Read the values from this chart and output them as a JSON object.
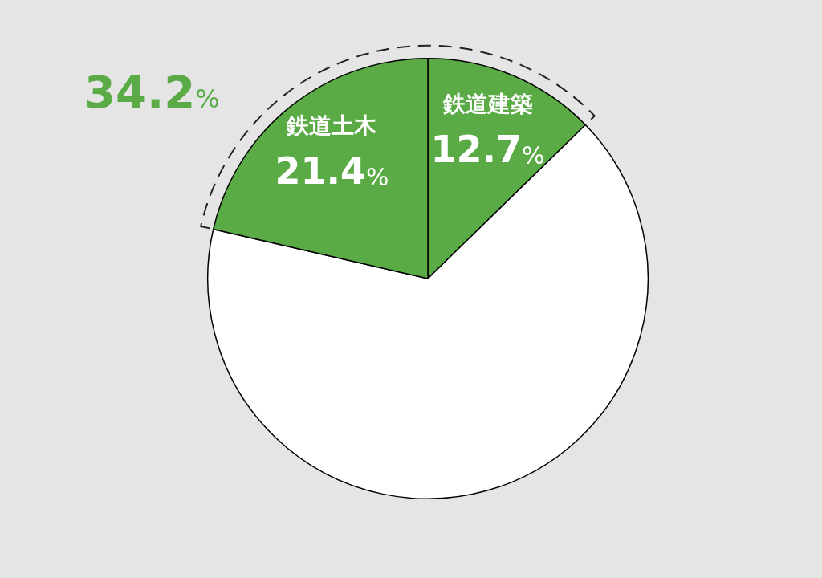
{
  "chart_data": {
    "type": "pie",
    "categories": [
      "鉄道建築",
      null,
      "鉄道土木"
    ],
    "values": [
      12.7,
      65.9,
      21.4
    ],
    "colors": [
      "#5aaa46",
      "#ffffff",
      "#5aaa46"
    ],
    "value_labels": [
      "12.7%",
      null,
      "21.4%"
    ],
    "annotations": [
      "34.2%"
    ],
    "legend": false
  }
}
